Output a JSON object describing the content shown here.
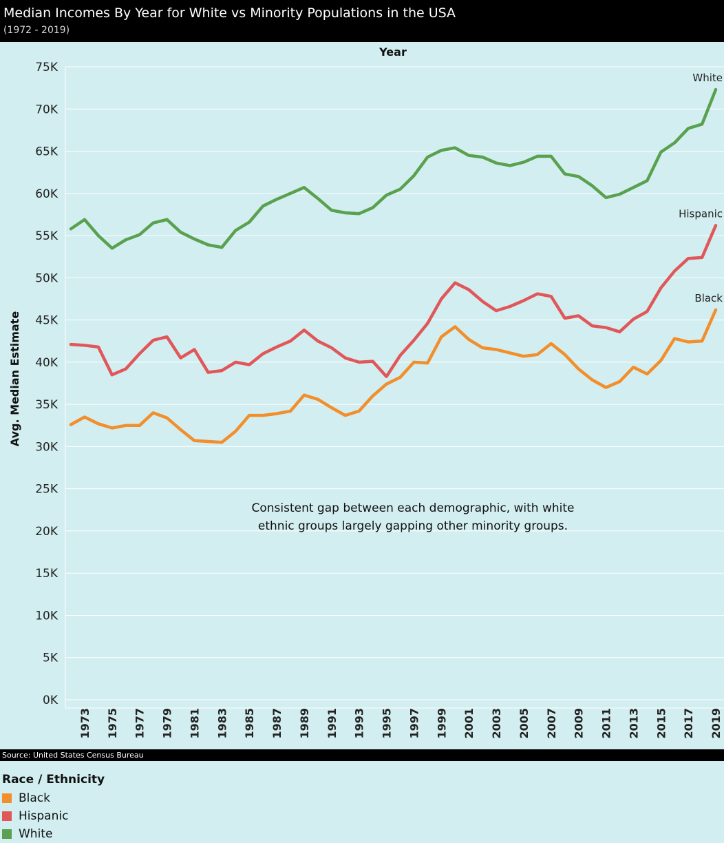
{
  "header": {
    "title": "Median Incomes By Year for White vs Minority Populations in the USA",
    "subtitle": "(1972 - 2019)"
  },
  "source": "Source: United States Census Bureau",
  "legend": {
    "title": "Race / Ethnicity",
    "items": [
      {
        "label": "Black",
        "color": "#f28e2b"
      },
      {
        "label": "Hispanic",
        "color": "#e15759"
      },
      {
        "label": "White",
        "color": "#59a14f"
      }
    ]
  },
  "chart_data": {
    "type": "line",
    "title": "Median Incomes By Year for White vs Minority Populations in the USA",
    "subtitle": "(1972 - 2019)",
    "xlabel": "Year",
    "ylabel": "Avg. Median Estimate",
    "x": [
      1972,
      1973,
      1974,
      1975,
      1976,
      1977,
      1978,
      1979,
      1980,
      1981,
      1982,
      1983,
      1984,
      1985,
      1986,
      1987,
      1988,
      1989,
      1990,
      1991,
      1992,
      1993,
      1994,
      1995,
      1996,
      1997,
      1998,
      1999,
      2000,
      2001,
      2002,
      2003,
      2004,
      2005,
      2006,
      2007,
      2008,
      2009,
      2010,
      2011,
      2012,
      2013,
      2014,
      2015,
      2016,
      2017,
      2018,
      2019
    ],
    "x_tick_labels": [
      "1973",
      "1975",
      "1977",
      "1979",
      "1981",
      "1983",
      "1985",
      "1987",
      "1989",
      "1991",
      "1993",
      "1995",
      "1997",
      "1999",
      "2001",
      "2003",
      "2005",
      "2007",
      "2009",
      "2011",
      "2013",
      "2015",
      "2017",
      "2019"
    ],
    "y_tick_labels": [
      "0K",
      "5K",
      "10K",
      "15K",
      "20K",
      "25K",
      "30K",
      "35K",
      "40K",
      "45K",
      "50K",
      "55K",
      "60K",
      "65K",
      "70K",
      "75K"
    ],
    "ylim": [
      0,
      75000
    ],
    "grid": true,
    "legend_position": "bottom-left",
    "series": [
      {
        "name": "White",
        "color": "#59a14f",
        "values": [
          55800,
          56900,
          55000,
          53500,
          54500,
          55100,
          56500,
          56900,
          55400,
          54600,
          53900,
          53600,
          55600,
          56600,
          58500,
          59300,
          60000,
          60700,
          59400,
          58000,
          57700,
          57600,
          58300,
          59800,
          60500,
          62100,
          64300,
          65100,
          65400,
          64500,
          64300,
          63600,
          63300,
          63700,
          64400,
          64400,
          62300,
          62000,
          60900,
          59500,
          59900,
          60700,
          61500,
          64900,
          66000,
          67700,
          68200,
          72300
        ]
      },
      {
        "name": "Hispanic",
        "color": "#e15759",
        "values": [
          42100,
          42000,
          41800,
          38500,
          39200,
          41000,
          42600,
          43000,
          40500,
          41500,
          38800,
          39000,
          40000,
          39700,
          41000,
          41800,
          42500,
          43800,
          42500,
          41700,
          40500,
          40000,
          40100,
          38300,
          40800,
          42600,
          44600,
          47500,
          49400,
          48600,
          47200,
          46100,
          46600,
          47300,
          48100,
          47800,
          45200,
          45500,
          44300,
          44100,
          43600,
          45100,
          46000,
          48800,
          50800,
          52300,
          52400,
          56200
        ]
      },
      {
        "name": "Black",
        "color": "#f28e2b",
        "values": [
          32600,
          33500,
          32700,
          32200,
          32500,
          32500,
          34000,
          33400,
          32000,
          30700,
          30600,
          30500,
          31800,
          33700,
          33700,
          33900,
          34200,
          36100,
          35600,
          34600,
          33700,
          34200,
          36000,
          37400,
          38200,
          40000,
          39900,
          43000,
          44200,
          42700,
          41700,
          41500,
          41100,
          40700,
          40900,
          42200,
          40900,
          39200,
          37900,
          37000,
          37700,
          39400,
          38600,
          40200,
          42800,
          42400,
          42500,
          46200
        ]
      }
    ],
    "annotation": "Consistent gap between each demographic, with white ethnic groups largely gapping other minority groups."
  }
}
